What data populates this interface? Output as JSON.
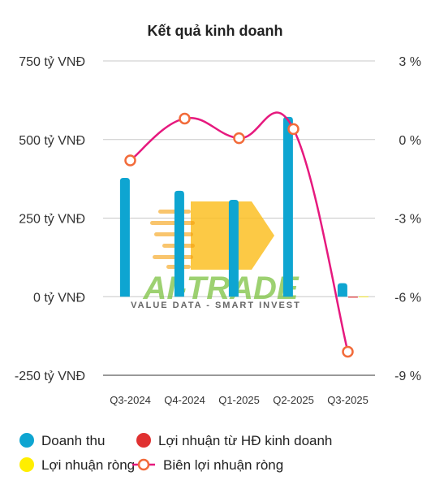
{
  "chart_data": {
    "type": "bar",
    "title": "Kết quả kinh doanh",
    "categories": [
      "Q3-2024",
      "Q4-2024",
      "Q1-2025",
      "Q2-2025",
      "Q3-2025"
    ],
    "series": [
      {
        "name": "Doanh thu",
        "kind": "bar",
        "axis": "left",
        "color": "#0ea5d1",
        "values": [
          378,
          337,
          308,
          572,
          43
        ]
      },
      {
        "name": "Lợi nhuận từ HĐ kinh doanh",
        "kind": "bar",
        "axis": "left",
        "color": "#e03131",
        "values": [
          0,
          0,
          0,
          0,
          -3
        ]
      },
      {
        "name": "Lợi nhuận ròng",
        "kind": "bar",
        "axis": "left",
        "color": "#ffee00",
        "values": [
          0,
          0,
          0,
          0,
          -2
        ]
      },
      {
        "name": "Biên lợi nhuận ròng",
        "kind": "line",
        "axis": "right",
        "color": "#e6197e",
        "marker_color": "#f26b3a",
        "values": [
          -0.8,
          0.8,
          0.05,
          0.4,
          -8.1
        ]
      }
    ],
    "y_left": {
      "min": -250,
      "max": 750,
      "ticks": [
        {
          "value": 750,
          "label": "750 tỷ VNĐ"
        },
        {
          "value": 500,
          "label": "500 tỷ VNĐ"
        },
        {
          "value": 250,
          "label": "250 tỷ VNĐ"
        },
        {
          "value": 0,
          "label": "0 tỷ VNĐ"
        },
        {
          "value": -250,
          "label": "-250 tỷ VNĐ"
        }
      ]
    },
    "y_right": {
      "min": -9,
      "max": 3,
      "ticks": [
        {
          "value": 3,
          "label": "3 %"
        },
        {
          "value": 0,
          "label": "0 %"
        },
        {
          "value": -3,
          "label": "-3 %"
        },
        {
          "value": -6,
          "label": "-6 %"
        },
        {
          "value": -9,
          "label": "-9 %"
        }
      ]
    },
    "grid": true,
    "legend_position": "bottom"
  },
  "watermark": {
    "main": "AI-TRADE",
    "sub": "VALUE DATA - SMART INVEST",
    "arrow_color": "#fbbf24"
  }
}
